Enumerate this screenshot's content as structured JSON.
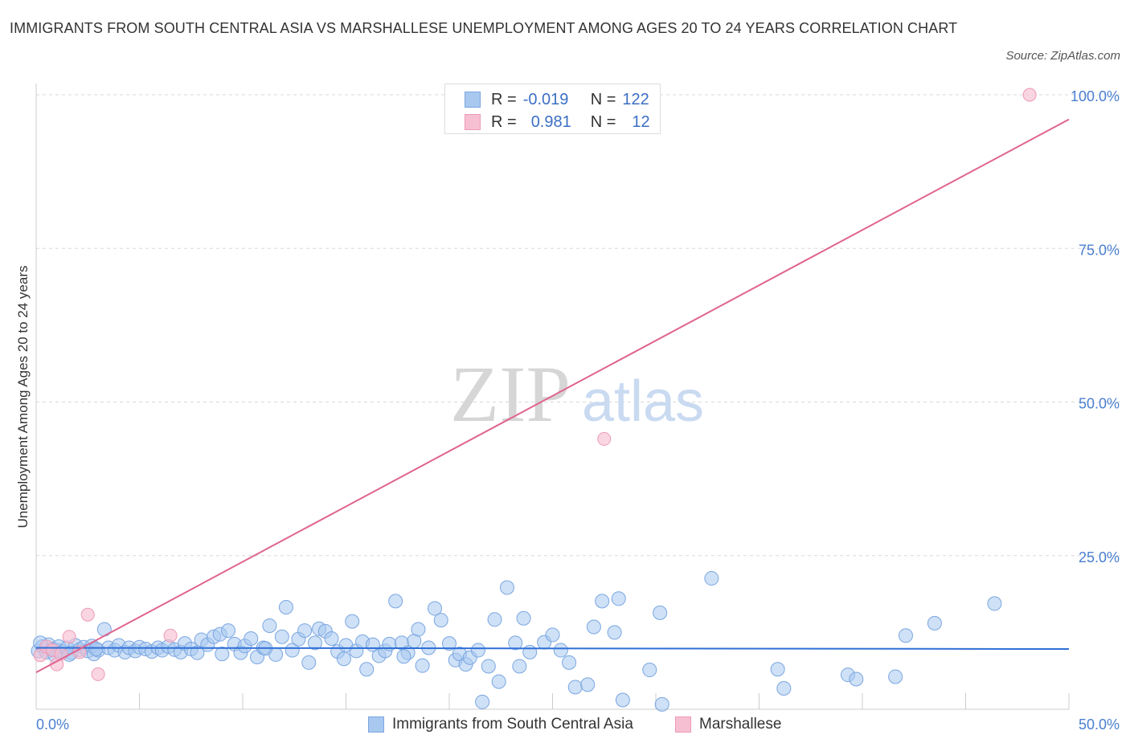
{
  "title": "IMMIGRANTS FROM SOUTH CENTRAL ASIA VS MARSHALLESE UNEMPLOYMENT AMONG AGES 20 TO 24 YEARS CORRELATION CHART",
  "source": "Source: ZipAtlas.com",
  "watermark": {
    "zip": "ZIP",
    "atlas": "atlas"
  },
  "legend": {
    "rows": [
      {
        "r_label": "R =",
        "r_value": "-0.019",
        "n_label": "N =",
        "n_value": "122"
      },
      {
        "r_label": "R =",
        "r_value": "0.981",
        "n_label": "N =",
        "n_value": "12"
      }
    ]
  },
  "bottom_legend": {
    "series1": "Immigrants from South Central Asia",
    "series2": "Marshallese"
  },
  "colors": {
    "blue_fill": "#a8c8f0",
    "blue_stroke": "#7aa6e0",
    "blue_line": "#2f6fd6",
    "pink_fill": "#f7bfd2",
    "pink_stroke": "#ee9ab6",
    "pink_line": "#e0648e",
    "tick_text": "#4a7fd0",
    "grid": "#d8d8d8"
  },
  "chart_data": {
    "type": "scatter",
    "title": "IMMIGRANTS FROM SOUTH CENTRAL ASIA VS MARSHALLESE UNEMPLOYMENT AMONG AGES 20 TO 24 YEARS CORRELATION CHART",
    "xlabel": "",
    "ylabel": "Unemployment Among Ages 20 to 24 years",
    "xlim": [
      0,
      50
    ],
    "ylim": [
      0,
      100
    ],
    "x_tick_labels": [
      "0.0%",
      "50.0%"
    ],
    "y_tick_labels": [
      "25.0%",
      "50.0%",
      "75.0%",
      "100.0%"
    ],
    "y_ticks": [
      25,
      50,
      75,
      100
    ],
    "series": [
      {
        "name": "Immigrants from South Central Asia",
        "R": -0.019,
        "N": 122,
        "trend": {
          "x": [
            0,
            50
          ],
          "y": [
            10.0,
            9.8
          ]
        },
        "points": [
          [
            0.1,
            9.5
          ],
          [
            0.3,
            10.2
          ],
          [
            0.5,
            9.3
          ],
          [
            0.6,
            10.5
          ],
          [
            0.8,
            9.8
          ],
          [
            1.0,
            9.6
          ],
          [
            1.1,
            10.2
          ],
          [
            1.3,
            9.4
          ],
          [
            1.5,
            10.0
          ],
          [
            1.7,
            9.2
          ],
          [
            1.9,
            10.4
          ],
          [
            2.1,
            9.7
          ],
          [
            2.3,
            10.1
          ],
          [
            2.5,
            9.5
          ],
          [
            2.7,
            10.3
          ],
          [
            2.8,
            9.0
          ],
          [
            3.0,
            9.6
          ],
          [
            3.3,
            13.0
          ],
          [
            3.5,
            10.0
          ],
          [
            3.8,
            9.6
          ],
          [
            4.0,
            10.4
          ],
          [
            4.3,
            9.3
          ],
          [
            4.5,
            10.0
          ],
          [
            4.8,
            9.5
          ],
          [
            5.0,
            10.1
          ],
          [
            5.3,
            9.8
          ],
          [
            5.6,
            9.4
          ],
          [
            5.9,
            10.0
          ],
          [
            6.1,
            9.6
          ],
          [
            6.4,
            10.2
          ],
          [
            6.7,
            9.7
          ],
          [
            7.0,
            9.3
          ],
          [
            7.2,
            10.7
          ],
          [
            7.5,
            9.8
          ],
          [
            7.8,
            9.2
          ],
          [
            8.0,
            11.3
          ],
          [
            8.3,
            10.5
          ],
          [
            8.6,
            11.8
          ],
          [
            8.9,
            12.2
          ],
          [
            9.0,
            9.0
          ],
          [
            9.3,
            12.8
          ],
          [
            9.6,
            10.6
          ],
          [
            9.9,
            9.2
          ],
          [
            10.1,
            10.3
          ],
          [
            10.4,
            11.5
          ],
          [
            10.7,
            8.5
          ],
          [
            11.0,
            10.0
          ],
          [
            11.3,
            13.6
          ],
          [
            11.6,
            8.9
          ],
          [
            11.9,
            11.8
          ],
          [
            12.1,
            16.6
          ],
          [
            12.4,
            9.6
          ],
          [
            12.7,
            11.4
          ],
          [
            13.0,
            12.8
          ],
          [
            13.2,
            7.6
          ],
          [
            13.5,
            10.8
          ],
          [
            13.7,
            13.1
          ],
          [
            14.0,
            12.7
          ],
          [
            14.3,
            11.5
          ],
          [
            14.6,
            9.4
          ],
          [
            14.9,
            8.2
          ],
          [
            15.0,
            10.4
          ],
          [
            15.3,
            14.3
          ],
          [
            15.5,
            9.5
          ],
          [
            15.8,
            11.0
          ],
          [
            16.0,
            6.5
          ],
          [
            16.3,
            10.5
          ],
          [
            16.6,
            8.7
          ],
          [
            16.9,
            9.5
          ],
          [
            17.1,
            10.6
          ],
          [
            17.4,
            17.6
          ],
          [
            17.7,
            10.8
          ],
          [
            18.0,
            9.2
          ],
          [
            18.3,
            11.1
          ],
          [
            18.5,
            13.0
          ],
          [
            18.7,
            7.1
          ],
          [
            19.0,
            10.0
          ],
          [
            19.3,
            16.4
          ],
          [
            19.6,
            14.5
          ],
          [
            20.0,
            10.7
          ],
          [
            20.3,
            8.0
          ],
          [
            20.5,
            9.0
          ],
          [
            20.8,
            7.3
          ],
          [
            21.0,
            8.4
          ],
          [
            21.4,
            9.6
          ],
          [
            21.6,
            1.2
          ],
          [
            21.9,
            7.0
          ],
          [
            22.2,
            14.6
          ],
          [
            22.4,
            4.5
          ],
          [
            22.8,
            19.8
          ],
          [
            23.2,
            10.8
          ],
          [
            23.4,
            7.0
          ],
          [
            23.6,
            14.8
          ],
          [
            23.9,
            9.3
          ],
          [
            24.6,
            10.9
          ],
          [
            25.0,
            12.1
          ],
          [
            25.4,
            9.6
          ],
          [
            25.8,
            7.6
          ],
          [
            26.1,
            3.6
          ],
          [
            26.7,
            4.0
          ],
          [
            27.0,
            13.4
          ],
          [
            27.4,
            17.6
          ],
          [
            28.0,
            12.5
          ],
          [
            28.2,
            18.0
          ],
          [
            28.4,
            1.5
          ],
          [
            29.7,
            6.4
          ],
          [
            30.2,
            15.7
          ],
          [
            30.3,
            0.8
          ],
          [
            32.7,
            21.3
          ],
          [
            35.9,
            6.5
          ],
          [
            36.2,
            3.4
          ],
          [
            39.3,
            5.6
          ],
          [
            39.7,
            4.9
          ],
          [
            41.6,
            5.3
          ],
          [
            42.1,
            12.0
          ],
          [
            43.5,
            14.0
          ],
          [
            46.4,
            17.2
          ],
          [
            0.2,
            10.8
          ],
          [
            0.9,
            8.8
          ],
          [
            1.6,
            8.9
          ],
          [
            2.9,
            9.8
          ],
          [
            11.1,
            9.9
          ],
          [
            17.8,
            8.6
          ]
        ]
      },
      {
        "name": "Marshallese",
        "R": 0.981,
        "N": 12,
        "trend": {
          "x": [
            0,
            50
          ],
          "y": [
            6.0,
            96.0
          ]
        },
        "points": [
          [
            0.2,
            8.8
          ],
          [
            0.5,
            10.2
          ],
          [
            0.8,
            9.6
          ],
          [
            1.0,
            7.3
          ],
          [
            1.2,
            9.0
          ],
          [
            1.6,
            11.8
          ],
          [
            2.1,
            9.3
          ],
          [
            2.5,
            15.4
          ],
          [
            3.0,
            5.7
          ],
          [
            6.5,
            12.0
          ],
          [
            27.5,
            44.0
          ],
          [
            48.1,
            100.0
          ]
        ]
      }
    ]
  }
}
